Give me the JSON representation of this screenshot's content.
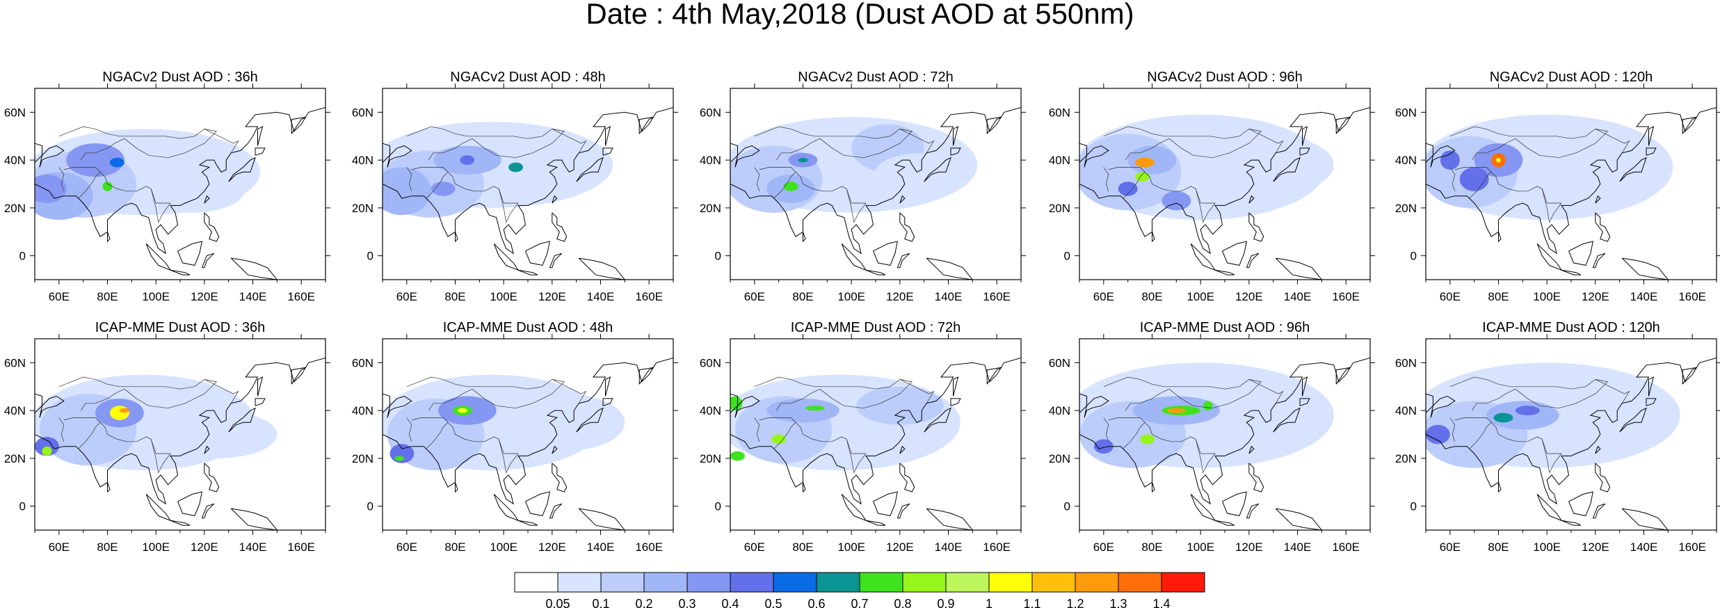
{
  "title": "Date : 4th May,2018 (Dust AOD at 550nm)",
  "map_extent": {
    "lon": [
      50,
      170
    ],
    "lat": [
      -10,
      70
    ]
  },
  "lon_ticks": [
    "60E",
    "80E",
    "100E",
    "120E",
    "140E",
    "160E"
  ],
  "lat_ticks": [
    "60N",
    "40N",
    "20N",
    "0"
  ],
  "colorbar": {
    "levels": [
      "0.05",
      "0.1",
      "0.2",
      "0.3",
      "0.4",
      "0.5",
      "0.6",
      "0.7",
      "0.8",
      "0.9",
      "1",
      "1.1",
      "1.2",
      "1.3",
      "1.4"
    ],
    "colors": [
      "#ffffff",
      "#d7e3ff",
      "#bccdfb",
      "#a0b6f7",
      "#8597f2",
      "#6370ea",
      "#0a6be6",
      "#0a9494",
      "#3fe21f",
      "#96f51a",
      "#bdf55c",
      "#ffff0a",
      "#ffbf0a",
      "#ff9a0a",
      "#ff6e0a",
      "#ff1a0a"
    ]
  },
  "panels": [
    {
      "title": "NGACv2 Dust AOD : 36h"
    },
    {
      "title": "NGACv2 Dust AOD : 48h"
    },
    {
      "title": "NGACv2 Dust AOD : 72h"
    },
    {
      "title": "NGACv2 Dust AOD : 96h"
    },
    {
      "title": "NGACv2 Dust AOD : 120h"
    },
    {
      "title": "ICAP-MME Dust AOD : 36h"
    },
    {
      "title": "ICAP-MME Dust AOD : 48h"
    },
    {
      "title": "ICAP-MME Dust AOD : 72h"
    },
    {
      "title": "ICAP-MME Dust AOD : 96h"
    },
    {
      "title": "ICAP-MME Dust AOD : 120h"
    }
  ]
}
